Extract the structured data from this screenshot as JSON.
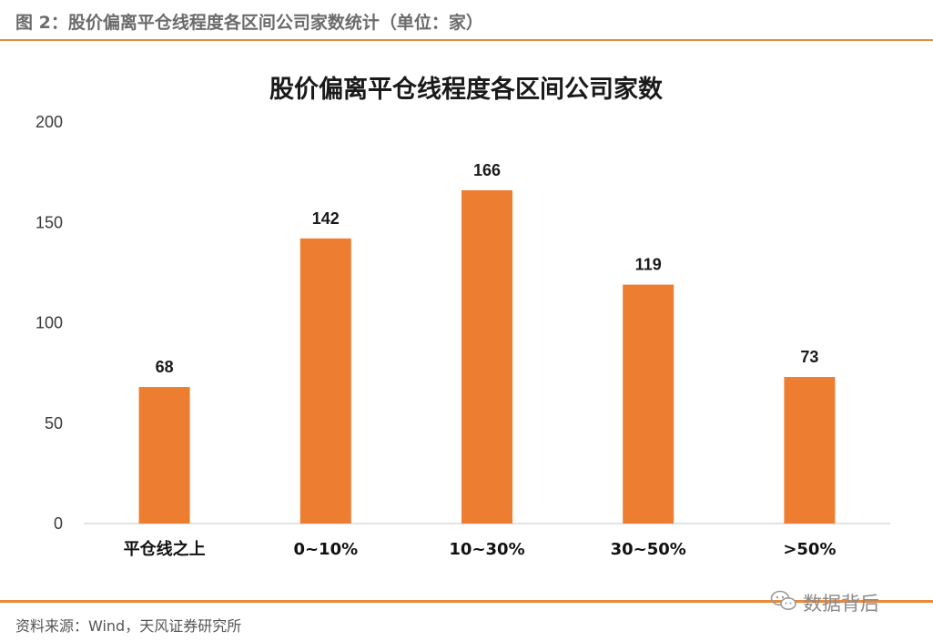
{
  "figure_caption": "图 2：股价偏离平仓线程度各区间公司家数统计（单位：家）",
  "source_note": "资料来源：Wind，天风证券研究所",
  "watermark": {
    "icon": "wechat-icon",
    "text": "数据背后"
  },
  "colors": {
    "accent": "#e9893a",
    "bar": "#ed7d31"
  },
  "chart_data": {
    "type": "bar",
    "title": "股价偏离平仓线程度各区间公司家数",
    "xlabel": "",
    "ylabel": "",
    "categories": [
      "平仓线之上",
      "0~10%",
      "10~30%",
      "30~50%",
      ">50%"
    ],
    "values": [
      68,
      142,
      166,
      119,
      73
    ],
    "ylim": [
      0,
      200
    ],
    "yticks": [
      0,
      50,
      100,
      150,
      200
    ],
    "grid": false,
    "legend": "none",
    "data_labels": true
  }
}
